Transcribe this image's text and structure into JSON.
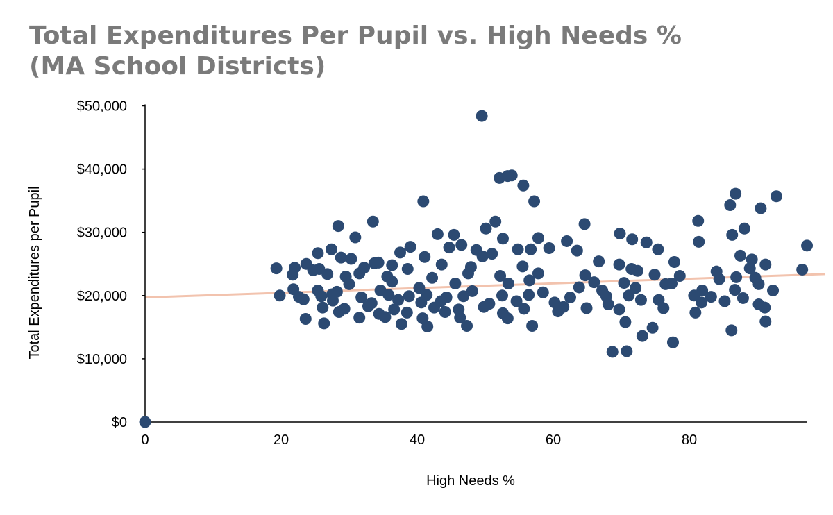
{
  "chart_data": {
    "type": "scatter",
    "title_lines": [
      "Total Expenditures Per Pupil vs. High Needs %",
      "(MA School Districts)"
    ],
    "xlabel": "High Needs %",
    "ylabel": "Total Expenditures per Pupil",
    "xlim": [
      0,
      100
    ],
    "ylim": [
      0,
      50000
    ],
    "x_ticks": [
      0,
      20,
      40,
      60,
      80
    ],
    "x_tick_labels": [
      "0",
      "20",
      "40",
      "60",
      "80"
    ],
    "y_ticks": [
      0,
      10000,
      20000,
      30000,
      40000,
      50000
    ],
    "y_tick_labels": [
      "$0",
      "$10,000",
      "$20,000",
      "$30,000",
      "$40,000",
      "$50,000"
    ],
    "grid": false,
    "legend": "none",
    "colors": {
      "points": "#2c4a72",
      "trendline": "#f2c3ae",
      "title": "#7a7a7a"
    },
    "trendline": {
      "type": "linear",
      "x": [
        0,
        100
      ],
      "y": [
        19700,
        23400
      ]
    },
    "series": [
      {
        "points": [
          [
            0,
            0
          ],
          [
            49.5,
            48400
          ],
          [
            53.3,
            38900
          ],
          [
            52.1,
            38600
          ],
          [
            53.9,
            39000
          ],
          [
            55.6,
            37400
          ],
          [
            57.2,
            34900
          ],
          [
            40.9,
            34900
          ],
          [
            86.8,
            36100
          ],
          [
            92.8,
            35700
          ],
          [
            86,
            34300
          ],
          [
            90.5,
            33800
          ],
          [
            64.6,
            31300
          ],
          [
            81.3,
            31800
          ],
          [
            33.5,
            31700
          ],
          [
            28.4,
            31000
          ],
          [
            51.5,
            31700
          ],
          [
            50.1,
            30600
          ],
          [
            88.1,
            30600
          ],
          [
            69.8,
            29800
          ],
          [
            86.3,
            29600
          ],
          [
            43,
            29700
          ],
          [
            45.4,
            29600
          ],
          [
            30.9,
            29200
          ],
          [
            52.6,
            29000
          ],
          [
            57.8,
            29100
          ],
          [
            71.6,
            28900
          ],
          [
            73.7,
            28400
          ],
          [
            62,
            28600
          ],
          [
            81.4,
            28500
          ],
          [
            97.3,
            27900
          ],
          [
            46.5,
            28000
          ],
          [
            39,
            27700
          ],
          [
            44.7,
            27600
          ],
          [
            48.7,
            27200
          ],
          [
            56.7,
            27300
          ],
          [
            59.4,
            27500
          ],
          [
            63.5,
            27100
          ],
          [
            75.4,
            27300
          ],
          [
            27.4,
            27300
          ],
          [
            25.4,
            26700
          ],
          [
            37.5,
            26800
          ],
          [
            49.6,
            26200
          ],
          [
            51,
            26600
          ],
          [
            54.8,
            27300
          ],
          [
            87.5,
            26300
          ],
          [
            41.1,
            26100
          ],
          [
            28.8,
            26000
          ],
          [
            30.3,
            25800
          ],
          [
            89.2,
            25700
          ],
          [
            66.7,
            25400
          ],
          [
            69.7,
            24900
          ],
          [
            77.8,
            25300
          ],
          [
            91.2,
            24900
          ],
          [
            23.7,
            25000
          ],
          [
            19.3,
            24300
          ],
          [
            22,
            24400
          ],
          [
            25.6,
            24200
          ],
          [
            32.2,
            24400
          ],
          [
            33.7,
            25100
          ],
          [
            34.3,
            25200
          ],
          [
            36.3,
            24800
          ],
          [
            38.6,
            24200
          ],
          [
            43.6,
            24900
          ],
          [
            47.9,
            24500
          ],
          [
            55.5,
            24600
          ],
          [
            71.5,
            24200
          ],
          [
            72.4,
            23900
          ],
          [
            84,
            23800
          ],
          [
            96.6,
            24100
          ],
          [
            88.9,
            24300
          ],
          [
            21.7,
            23300
          ],
          [
            24.7,
            24000
          ],
          [
            26.8,
            23400
          ],
          [
            29.5,
            23000
          ],
          [
            31.5,
            23500
          ],
          [
            35.6,
            23000
          ],
          [
            42.2,
            22800
          ],
          [
            47.5,
            23500
          ],
          [
            52.2,
            23100
          ],
          [
            57.8,
            23500
          ],
          [
            64.7,
            23200
          ],
          [
            74.9,
            23300
          ],
          [
            78.6,
            23100
          ],
          [
            84.4,
            22600
          ],
          [
            86.9,
            22900
          ],
          [
            89.7,
            22800
          ],
          [
            56.5,
            22400
          ],
          [
            66,
            22100
          ],
          [
            70.4,
            22000
          ],
          [
            76.5,
            21800
          ],
          [
            77.4,
            21900
          ],
          [
            90.2,
            21800
          ],
          [
            30,
            21800
          ],
          [
            36.3,
            22200
          ],
          [
            45.6,
            21900
          ],
          [
            53.4,
            21900
          ],
          [
            63.8,
            21300
          ],
          [
            92.3,
            20800
          ],
          [
            81.9,
            20800
          ],
          [
            86.7,
            20900
          ],
          [
            21.8,
            21000
          ],
          [
            25.4,
            20800
          ],
          [
            28.2,
            20600
          ],
          [
            34.6,
            20800
          ],
          [
            40.3,
            21200
          ],
          [
            48.1,
            20700
          ],
          [
            58.5,
            20500
          ],
          [
            67.2,
            20800
          ],
          [
            72.1,
            21200
          ],
          [
            19.8,
            20000
          ],
          [
            22.6,
            19800
          ],
          [
            25.9,
            19900
          ],
          [
            27.5,
            20200
          ],
          [
            31.8,
            19700
          ],
          [
            35.8,
            20100
          ],
          [
            38.8,
            19900
          ],
          [
            41.4,
            20100
          ],
          [
            44.3,
            19700
          ],
          [
            46.8,
            19900
          ],
          [
            52.5,
            20000
          ],
          [
            56.4,
            20100
          ],
          [
            62.5,
            19700
          ],
          [
            67.8,
            19900
          ],
          [
            71.1,
            20000
          ],
          [
            80.7,
            20000
          ],
          [
            83.2,
            19800
          ],
          [
            87.9,
            19600
          ],
          [
            23.3,
            19400
          ],
          [
            27.6,
            19200
          ],
          [
            33.3,
            18800
          ],
          [
            37.2,
            19300
          ],
          [
            40.6,
            18900
          ],
          [
            43.5,
            19100
          ],
          [
            50.6,
            18700
          ],
          [
            54.6,
            19100
          ],
          [
            60.2,
            18900
          ],
          [
            68.1,
            18600
          ],
          [
            72.9,
            19300
          ],
          [
            75.5,
            19300
          ],
          [
            81.8,
            18900
          ],
          [
            85.2,
            19100
          ],
          [
            90.2,
            18600
          ],
          [
            26.1,
            18100
          ],
          [
            29.3,
            17900
          ],
          [
            32.8,
            18300
          ],
          [
            36.6,
            17800
          ],
          [
            42.5,
            18100
          ],
          [
            46.1,
            17800
          ],
          [
            49.8,
            18200
          ],
          [
            55.7,
            17900
          ],
          [
            61.5,
            18200
          ],
          [
            64.9,
            18000
          ],
          [
            69.7,
            17800
          ],
          [
            76.2,
            18000
          ],
          [
            91.1,
            18100
          ],
          [
            28.5,
            17400
          ],
          [
            34.4,
            17100
          ],
          [
            38.5,
            17300
          ],
          [
            44.1,
            17400
          ],
          [
            52.6,
            17200
          ],
          [
            60.7,
            17500
          ],
          [
            80.9,
            17300
          ],
          [
            31.5,
            16500
          ],
          [
            35.3,
            16600
          ],
          [
            40.8,
            16400
          ],
          [
            46.3,
            16500
          ],
          [
            53.3,
            16400
          ],
          [
            23.6,
            16300
          ],
          [
            26.3,
            15600
          ],
          [
            37.7,
            15500
          ],
          [
            41.5,
            15100
          ],
          [
            47.3,
            15200
          ],
          [
            56.9,
            15200
          ],
          [
            70.6,
            15800
          ],
          [
            86.2,
            14500
          ],
          [
            91.2,
            15900
          ],
          [
            74.6,
            14900
          ],
          [
            73.1,
            13600
          ],
          [
            77.6,
            12600
          ],
          [
            68.7,
            11100
          ],
          [
            70.8,
            11200
          ]
        ]
      }
    ]
  }
}
